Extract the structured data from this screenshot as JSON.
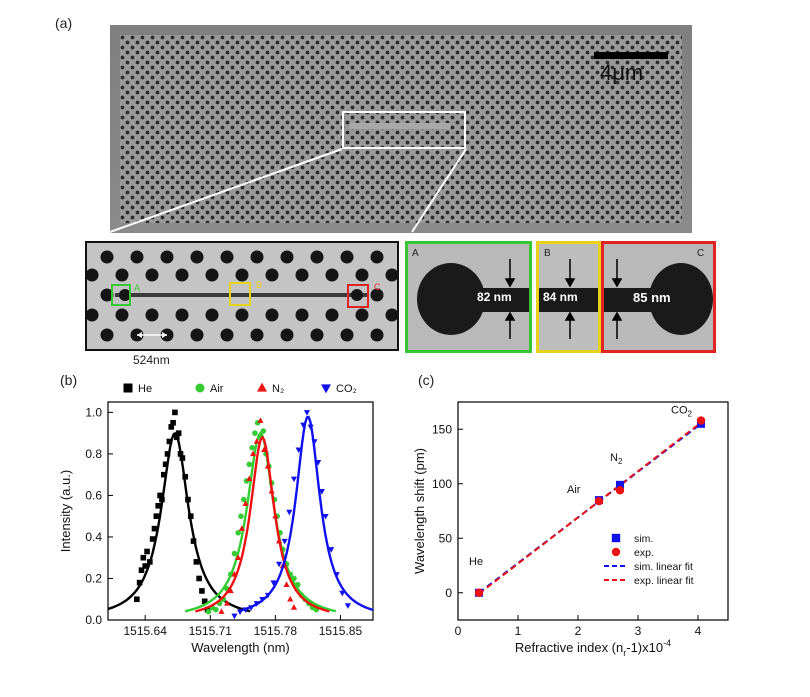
{
  "labels": {
    "a": "(a)",
    "b": "(b)",
    "c": "(c)"
  },
  "sem": {
    "scale_bar": "4μm",
    "lattice_label": "524nm",
    "marker_A": "A",
    "marker_B": "B",
    "marker_C": "C",
    "inset_A": {
      "tag": "A",
      "width": "82 nm",
      "color": "#39c633"
    },
    "inset_B": {
      "tag": "B",
      "width": "84 nm",
      "color": "#e8d219"
    },
    "inset_C": {
      "tag": "C",
      "width": "85 nm",
      "color": "#e02424"
    }
  },
  "colors": {
    "he": "#000000",
    "air": "#33cc33",
    "n2": "#ee1111",
    "co2": "#1111ee"
  },
  "chart_data": [
    {
      "type": "line",
      "panel": "(b)",
      "xlabel": "Wavelength (nm)",
      "ylabel": "Intensity (a.u.)",
      "xlim": [
        1515.6,
        1515.885
      ],
      "ylim": [
        0.0,
        1.05
      ],
      "xticks": [
        "1515.64",
        "1515.71",
        "1515.78",
        "1515.85"
      ],
      "xtick_values": [
        1515.64,
        1515.71,
        1515.78,
        1515.85
      ],
      "yticks": [
        "0.0",
        "0.2",
        "0.4",
        "0.6",
        "0.8",
        "1.0"
      ],
      "ytick_values": [
        0.0,
        0.2,
        0.4,
        0.6,
        0.8,
        1.0
      ],
      "legend": [
        "He",
        "Air",
        "N₂",
        "CO₂"
      ],
      "series": [
        {
          "name": "He",
          "marker": "square",
          "center": 1515.672,
          "hwhm": 0.018,
          "peak": 0.9,
          "points": [
            [
              1515.631,
              0.1
            ],
            [
              1515.634,
              0.18
            ],
            [
              1515.636,
              0.24
            ],
            [
              1515.638,
              0.3
            ],
            [
              1515.64,
              0.26
            ],
            [
              1515.642,
              0.33
            ],
            [
              1515.645,
              0.28
            ],
            [
              1515.648,
              0.39
            ],
            [
              1515.65,
              0.44
            ],
            [
              1515.652,
              0.5
            ],
            [
              1515.654,
              0.55
            ],
            [
              1515.656,
              0.6
            ],
            [
              1515.658,
              0.58
            ],
            [
              1515.66,
              0.7
            ],
            [
              1515.662,
              0.75
            ],
            [
              1515.664,
              0.8
            ],
            [
              1515.666,
              0.86
            ],
            [
              1515.668,
              0.93
            ],
            [
              1515.67,
              0.95
            ],
            [
              1515.672,
              1.0
            ],
            [
              1515.674,
              0.88
            ],
            [
              1515.676,
              0.9
            ],
            [
              1515.678,
              0.8
            ],
            [
              1515.68,
              0.78
            ],
            [
              1515.683,
              0.69
            ],
            [
              1515.686,
              0.58
            ],
            [
              1515.689,
              0.5
            ],
            [
              1515.692,
              0.38
            ],
            [
              1515.695,
              0.28
            ],
            [
              1515.698,
              0.2
            ],
            [
              1515.701,
              0.14
            ],
            [
              1515.704,
              0.09
            ],
            [
              1515.707,
              0.05
            ]
          ]
        },
        {
          "name": "Air",
          "marker": "circle",
          "center": 1515.764,
          "hwhm": 0.018,
          "peak": 0.9,
          "points": [
            [
              1515.708,
              0.04
            ],
            [
              1515.712,
              0.06
            ],
            [
              1515.716,
              0.05
            ],
            [
              1515.72,
              0.08
            ],
            [
              1515.724,
              0.1
            ],
            [
              1515.728,
              0.15
            ],
            [
              1515.732,
              0.22
            ],
            [
              1515.736,
              0.32
            ],
            [
              1515.74,
              0.42
            ],
            [
              1515.743,
              0.5
            ],
            [
              1515.746,
              0.58
            ],
            [
              1515.749,
              0.67
            ],
            [
              1515.752,
              0.75
            ],
            [
              1515.755,
              0.83
            ],
            [
              1515.758,
              0.9
            ],
            [
              1515.761,
              0.95
            ],
            [
              1515.764,
              0.88
            ],
            [
              1515.767,
              0.91
            ],
            [
              1515.77,
              0.8
            ],
            [
              1515.773,
              0.74
            ],
            [
              1515.776,
              0.66
            ],
            [
              1515.779,
              0.58
            ],
            [
              1515.782,
              0.5
            ],
            [
              1515.785,
              0.42
            ],
            [
              1515.788,
              0.34
            ],
            [
              1515.792,
              0.27
            ],
            [
              1515.796,
              0.22
            ],
            [
              1515.8,
              0.2
            ],
            [
              1515.804,
              0.17
            ],
            [
              1515.808,
              0.12
            ],
            [
              1515.812,
              0.1
            ],
            [
              1515.816,
              0.08
            ],
            [
              1515.82,
              0.06
            ],
            [
              1515.824,
              0.05
            ]
          ]
        },
        {
          "name": "N₂",
          "marker": "triangle-up",
          "center": 1515.766,
          "hwhm": 0.016,
          "peak": 0.88,
          "points": [
            [
              1515.722,
              0.04
            ],
            [
              1515.728,
              0.08
            ],
            [
              1515.732,
              0.14
            ],
            [
              1515.736,
              0.22
            ],
            [
              1515.74,
              0.3
            ],
            [
              1515.744,
              0.44
            ],
            [
              1515.748,
              0.56
            ],
            [
              1515.752,
              0.68
            ],
            [
              1515.756,
              0.8
            ],
            [
              1515.76,
              0.86
            ],
            [
              1515.764,
              0.96
            ],
            [
              1515.768,
              0.82
            ],
            [
              1515.772,
              0.74
            ],
            [
              1515.776,
              0.62
            ],
            [
              1515.78,
              0.5
            ],
            [
              1515.784,
              0.38
            ],
            [
              1515.788,
              0.26
            ],
            [
              1515.792,
              0.17
            ],
            [
              1515.796,
              0.1
            ],
            [
              1515.8,
              0.06
            ]
          ]
        },
        {
          "name": "CO₂",
          "marker": "triangle-down",
          "center": 1515.815,
          "hwhm": 0.016,
          "peak": 0.98,
          "points": [
            [
              1515.736,
              0.02
            ],
            [
              1515.742,
              0.04
            ],
            [
              1515.748,
              0.05
            ],
            [
              1515.754,
              0.06
            ],
            [
              1515.76,
              0.08
            ],
            [
              1515.766,
              0.1
            ],
            [
              1515.772,
              0.12
            ],
            [
              1515.778,
              0.18
            ],
            [
              1515.784,
              0.27
            ],
            [
              1515.79,
              0.38
            ],
            [
              1515.795,
              0.52
            ],
            [
              1515.8,
              0.68
            ],
            [
              1515.805,
              0.82
            ],
            [
              1515.81,
              0.94
            ],
            [
              1515.814,
              1.0
            ],
            [
              1515.818,
              0.93
            ],
            [
              1515.822,
              0.86
            ],
            [
              1515.826,
              0.76
            ],
            [
              1515.83,
              0.62
            ],
            [
              1515.834,
              0.5
            ],
            [
              1515.84,
              0.34
            ],
            [
              1515.846,
              0.22
            ],
            [
              1515.852,
              0.13
            ],
            [
              1515.858,
              0.07
            ]
          ]
        }
      ]
    },
    {
      "type": "scatter",
      "panel": "(c)",
      "xlabel": "Refractive index (n",
      "xlabel_sub": "r",
      "xlabel_tail": "-1)x10",
      "xlabel_sup": "-4",
      "ylabel": "Wavelength shift (pm)",
      "xlim": [
        0,
        4.5
      ],
      "ylim": [
        -25,
        175
      ],
      "xticks": [
        "0",
        "1",
        "2",
        "3",
        "4"
      ],
      "xtick_values": [
        0,
        1,
        2,
        3,
        4
      ],
      "yticks": [
        "0",
        "50",
        "100",
        "150"
      ],
      "ytick_values": [
        0,
        50,
        100,
        150
      ],
      "point_labels": [
        {
          "text": "He",
          "x": 0.35,
          "y": 0
        },
        {
          "text": "Air",
          "x": 2.35,
          "y": 84
        },
        {
          "text": "N",
          "sub": "2",
          "x": 2.7,
          "y": 97
        },
        {
          "text": "CO",
          "sub": "2",
          "x": 4.05,
          "y": 157
        }
      ],
      "legend": [
        "sim.",
        "exp.",
        "sim. linear fit",
        "exp. linear fit"
      ],
      "series": [
        {
          "name": "sim.",
          "marker": "square",
          "x": [
            0.35,
            2.35,
            2.7,
            4.05
          ],
          "y": [
            0,
            85,
            99,
            155
          ]
        },
        {
          "name": "exp.",
          "marker": "circle",
          "x": [
            0.35,
            2.35,
            2.7,
            4.05
          ],
          "y": [
            0,
            84,
            94,
            158
          ]
        },
        {
          "name": "sim. linear fit",
          "style": "dashed",
          "x": [
            0.35,
            4.05
          ],
          "y": [
            0,
            155
          ]
        },
        {
          "name": "exp. linear fit",
          "style": "dashed",
          "x": [
            0.35,
            4.05
          ],
          "y": [
            0,
            157
          ]
        }
      ]
    }
  ]
}
